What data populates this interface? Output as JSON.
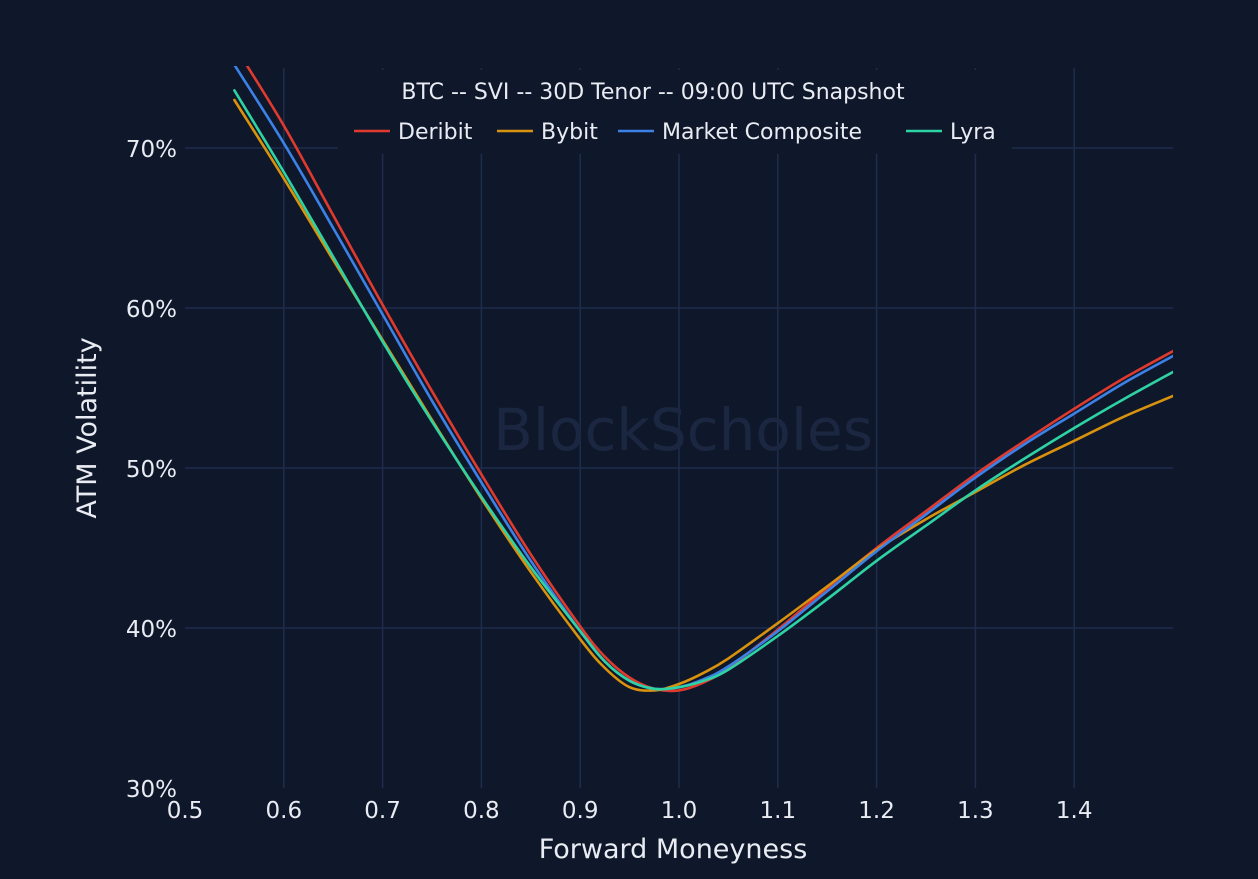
{
  "chart_data": {
    "type": "line",
    "title": "BTC -- SVI -- 30D Tenor -- 09:00 UTC Snapshot",
    "xlabel": "Forward Moneyness",
    "ylabel": "ATM Volatility",
    "watermark": "BlockScholes",
    "xlim": [
      0.5,
      1.5
    ],
    "ylim": [
      30,
      75
    ],
    "x_ticks": [
      0.5,
      0.6,
      0.7,
      0.8,
      0.9,
      1.0,
      1.1,
      1.2,
      1.3,
      1.4
    ],
    "x_tick_labels": [
      "0.5",
      "0.6",
      "0.7",
      "0.8",
      "0.9",
      "1.0",
      "1.1",
      "1.2",
      "1.3",
      "1.4"
    ],
    "y_ticks": [
      30,
      40,
      50,
      60,
      70
    ],
    "y_tick_labels": [
      "30%",
      "40%",
      "50%",
      "60%",
      "70%"
    ],
    "grid": true,
    "legend_position": "top-center",
    "background_color": "#0f172b",
    "grid_color": "#1e2d4d",
    "text_color": "#e9ecf2",
    "x": [
      0.55,
      0.6,
      0.65,
      0.7,
      0.75,
      0.8,
      0.85,
      0.9,
      0.925,
      0.95,
      0.975,
      1.0,
      1.025,
      1.05,
      1.1,
      1.15,
      1.2,
      1.25,
      1.3,
      1.35,
      1.4,
      1.45,
      1.5
    ],
    "series": [
      {
        "name": "Deribit",
        "color": "#e03a2e",
        "values": [
          76.4,
          71.4,
          65.8,
          60.2,
          54.8,
          49.6,
          44.6,
          40.1,
          38.2,
          36.9,
          36.2,
          36.1,
          36.6,
          37.5,
          39.9,
          42.5,
          45.0,
          47.3,
          49.6,
          51.7,
          53.7,
          55.6,
          57.3
        ]
      },
      {
        "name": "Bybit",
        "color": "#d9920e",
        "values": [
          73.0,
          68.1,
          63.0,
          58.0,
          53.0,
          48.1,
          43.5,
          39.3,
          37.5,
          36.3,
          36.1,
          36.5,
          37.2,
          38.1,
          40.3,
          42.6,
          44.9,
          46.8,
          48.5,
          50.2,
          51.7,
          53.2,
          54.5
        ]
      },
      {
        "name": "Market Composite",
        "color": "#3c82e6",
        "values": [
          75.2,
          70.3,
          65.0,
          59.6,
          54.2,
          49.1,
          44.2,
          39.8,
          37.9,
          36.7,
          36.2,
          36.3,
          36.8,
          37.6,
          39.8,
          42.3,
          44.8,
          47.1,
          49.4,
          51.5,
          53.4,
          55.3,
          57.0
        ]
      },
      {
        "name": "Lyra",
        "color": "#2ed3a3",
        "values": [
          73.6,
          68.5,
          63.2,
          57.9,
          52.9,
          48.2,
          43.8,
          39.8,
          37.9,
          36.7,
          36.2,
          36.3,
          36.7,
          37.4,
          39.5,
          41.8,
          44.2,
          46.4,
          48.6,
          50.6,
          52.5,
          54.3,
          56.0
        ]
      }
    ]
  }
}
